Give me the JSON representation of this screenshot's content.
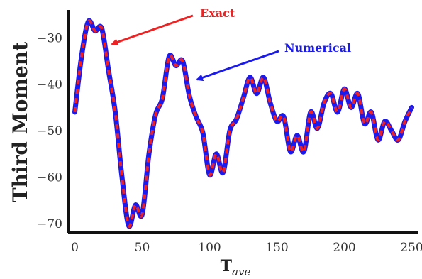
{
  "chart_data": {
    "type": "line",
    "xlabel": "T",
    "xlabel_sub": "ave",
    "ylabel": "Third Moment",
    "xlim": [
      -5,
      255
    ],
    "ylim": [
      -72,
      -24
    ],
    "xticks": [
      0,
      50,
      100,
      150,
      200,
      250
    ],
    "yticks": [
      -30,
      -40,
      -50,
      -60,
      -70
    ],
    "grid": false,
    "x": [
      0,
      5,
      10,
      15,
      20,
      25,
      30,
      35,
      40,
      45,
      50,
      55,
      60,
      65,
      70,
      75,
      80,
      85,
      90,
      95,
      100,
      105,
      110,
      115,
      120,
      125,
      130,
      135,
      140,
      145,
      150,
      155,
      160,
      165,
      170,
      175,
      180,
      185,
      190,
      195,
      200,
      205,
      210,
      215,
      220,
      225,
      230,
      235,
      240,
      245,
      250
    ],
    "series": [
      {
        "name": "Numerical",
        "color": "#1a1aee",
        "style": "solid",
        "values": [
          -46,
          -34,
          -26.5,
          -28.5,
          -28,
          -37,
          -46,
          -60,
          -70.5,
          -66,
          -68,
          -55,
          -46.5,
          -43,
          -34,
          -36,
          -35,
          -42.5,
          -47,
          -50.5,
          -59.5,
          -55,
          -59,
          -50,
          -47.5,
          -43,
          -38.5,
          -42,
          -38.5,
          -44,
          -48,
          -47,
          -54.5,
          -51,
          -54.5,
          -46,
          -49.5,
          -44,
          -42,
          -46,
          -41,
          -45,
          -42,
          -48.5,
          -46,
          -52,
          -48,
          -50,
          -52,
          -48,
          -45
        ]
      },
      {
        "name": "Exact",
        "color": "#ee2222",
        "style": "dashed",
        "values": [
          -46,
          -34,
          -26.5,
          -28.5,
          -28,
          -37,
          -46,
          -60,
          -70.5,
          -66,
          -68,
          -55,
          -46.5,
          -43,
          -34,
          -36,
          -35,
          -42.5,
          -47,
          -50.5,
          -59.5,
          -55,
          -59,
          -50,
          -47.5,
          -43,
          -38.5,
          -42,
          -38.5,
          -44,
          -48,
          -47,
          -54.5,
          -51,
          -54.5,
          -46,
          -49.5,
          -44,
          -42,
          -46,
          -41,
          -45,
          -42,
          -48.5,
          -46,
          -52,
          -48,
          -50,
          -52,
          -48,
          -45
        ]
      }
    ],
    "annotations": [
      {
        "text": "Exact",
        "color": "#ee2222",
        "points_to_x": 22,
        "points_to_y": -32
      },
      {
        "text": "Numerical",
        "color": "#1a1aee",
        "points_to_x": 88,
        "points_to_y": -40
      }
    ]
  }
}
